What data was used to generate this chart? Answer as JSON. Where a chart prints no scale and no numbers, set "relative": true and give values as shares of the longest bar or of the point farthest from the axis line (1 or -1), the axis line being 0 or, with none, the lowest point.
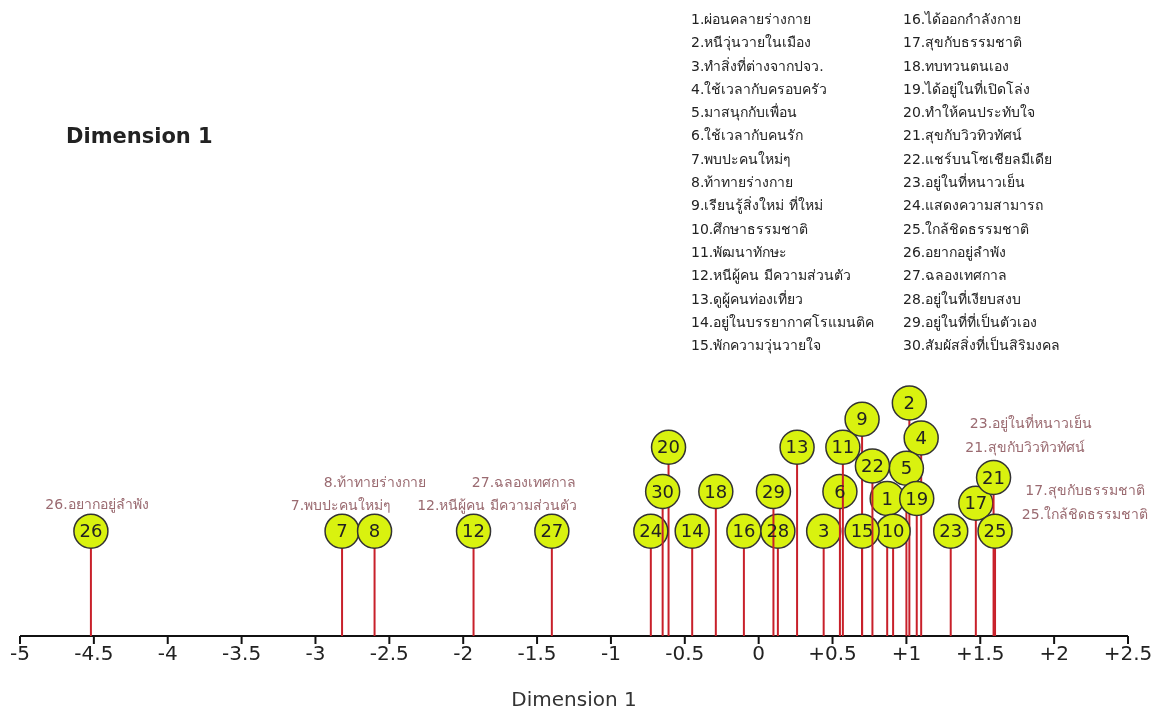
{
  "chart_data": {
    "type": "lollipop",
    "title": "Dimension 1",
    "xlabel": "Dimension 1",
    "relative": true,
    "marker": "circle",
    "xlim": [
      -5,
      2.5
    ],
    "xticks": [
      -5,
      -4.5,
      -4,
      -3.5,
      -3,
      -2.5,
      -2,
      -1.5,
      -1,
      -0.5,
      0,
      {
        "value": 0.5,
        "label": "+0.5"
      },
      {
        "value": 1,
        "label": "+1"
      },
      {
        "value": 1.5,
        "label": "+1.5"
      },
      {
        "value": 2,
        "label": "+2"
      },
      {
        "value": 2.5,
        "label": "+2.5"
      }
    ],
    "series": [
      {
        "color": "#d9f20f",
        "x": [
          0.87,
          1.02,
          0.44,
          1.1,
          1.0,
          0.55,
          -2.82,
          -2.6,
          0.7,
          0.91,
          0.57,
          -1.93,
          0.26,
          -0.45,
          0.7,
          -0.1,
          1.47,
          -0.29,
          1.07,
          -0.61,
          1.59,
          0.77,
          1.3,
          -0.73,
          1.6,
          -4.52,
          -1.4,
          0.13,
          0.1,
          -0.65
        ],
        "values": [
          0.59,
          1,
          0.45,
          0.85,
          0.72,
          0.62,
          0.45,
          0.45,
          0.93,
          0.45,
          0.81,
          0.45,
          0.81,
          0.45,
          0.45,
          0.45,
          0.57,
          0.62,
          0.59,
          0.81,
          0.68,
          0.73,
          0.45,
          0.45,
          0.45,
          0.45,
          0.45,
          0.45,
          0.62,
          0.62
        ]
      }
    ],
    "annotations": [
      "1.ผ่อนคลายร่างกาย",
      "2.หนีวุ่นวายในเมือง",
      "3.ทำสิ่งที่ต่างจากปจว.",
      "4.ใช้เวลากับครอบครัว",
      "5.มาสนุกกับเพื่อน",
      "6.ใช้เวลากับคนรัก",
      "7.พบปะคนใหม่ๆ",
      "8.ท้าทายร่างกาย",
      "9.เรียนรู้สิ่งใหม่ ที่ใหม่",
      "10.ศึกษาธรรมชาติ",
      "11.พัฒนาทักษะ",
      "12.หนีผู้คน มีความส่วนตัว",
      "13.ดูผู้คนท่องเที่ยว",
      "14.อยู่ในบรรยากาศโรแมนติค",
      "15.พักความวุ่นวายใจ",
      "16.ได้ออกกำลังกาย",
      "17.สุขกับธรรมชาติ",
      "18.ทบทวนตนเอง",
      "19.ได้อยู่ในที่เปิดโล่ง",
      "20.ทำให้คนประทับใจ",
      "21.สุขกับวิวทิวทัศน์",
      "22.แชร์บนโซเชียลมีเดีย",
      "23.อยู่ในที่หนาวเย็น",
      "24.แสดงความสามารถ",
      "25.ใกล้ชิดธรรมชาติ",
      "26.อยากอยู่ลำพัง",
      "27.ฉลองเทศกาล",
      "28.อยู่ในที่เงียบสงบ",
      "29.อยู่ในที่ที่เป็นตัวเอง",
      "30.สัมผัสสิ่งที่เป็นสิริมงคล",
      {
        "text": "1",
        "x": 0.87,
        "y": 0.59
      },
      {
        "text": "2",
        "x": 1.02,
        "y": 1
      },
      {
        "text": "3",
        "x": 0.44,
        "y": 0.45
      },
      {
        "text": "4",
        "x": 1.1,
        "y": 0.85
      },
      {
        "text": "5",
        "x": 1.0,
        "y": 0.72
      },
      {
        "text": "6",
        "x": 0.55,
        "y": 0.62
      },
      {
        "text": "7",
        "x": -2.82,
        "y": 0.45
      },
      {
        "text": "8",
        "x": -2.6,
        "y": 0.45
      },
      {
        "text": "9",
        "x": 0.7,
        "y": 0.93
      },
      {
        "text": "10",
        "x": 0.91,
        "y": 0.45
      },
      {
        "text": "11",
        "x": 0.57,
        "y": 0.81
      },
      {
        "text": "12",
        "x": -1.93,
        "y": 0.45
      },
      {
        "text": "13",
        "x": 0.26,
        "y": 0.81
      },
      {
        "text": "14",
        "x": -0.45,
        "y": 0.45
      },
      {
        "text": "15",
        "x": 0.7,
        "y": 0.45
      },
      {
        "text": "16",
        "x": -0.1,
        "y": 0.45
      },
      {
        "text": "17",
        "x": 1.47,
        "y": 0.57
      },
      {
        "text": "18",
        "x": -0.29,
        "y": 0.62
      },
      {
        "text": "19",
        "x": 1.07,
        "y": 0.59
      },
      {
        "text": "20",
        "x": -0.61,
        "y": 0.81
      },
      {
        "text": "21",
        "x": 1.59,
        "y": 0.68
      },
      {
        "text": "22",
        "x": 0.77,
        "y": 0.73
      },
      {
        "text": "23",
        "x": 1.3,
        "y": 0.45
      },
      {
        "text": "24",
        "x": -0.73,
        "y": 0.45
      },
      {
        "text": "25",
        "x": 1.6,
        "y": 0.45
      },
      {
        "text": "26",
        "x": -4.52,
        "y": 0.45
      },
      {
        "text": "27",
        "x": -1.4,
        "y": 0.45
      },
      {
        "text": "28",
        "x": 0.13,
        "y": 0.45
      },
      {
        "text": "29",
        "x": 0.1,
        "y": 0.62
      },
      {
        "text": "30",
        "x": -0.65,
        "y": 0.62
      },
      "26.อยากอยู่ลำพัง",
      "8.ท้าทายร่างกาย",
      "7.พบปะคนใหม่ๆ",
      "27.ฉลองเทศกาล",
      "12.หนีผู้คน มีความส่วนตัว",
      "23.อยู่ในที่หนาวเย็น",
      "21.สุขกับวิวทิวทัศน์",
      "17.สุขกับธรรมชาติ",
      "25.ใกล้ชิดธรรมชาติ"
    ]
  }
}
